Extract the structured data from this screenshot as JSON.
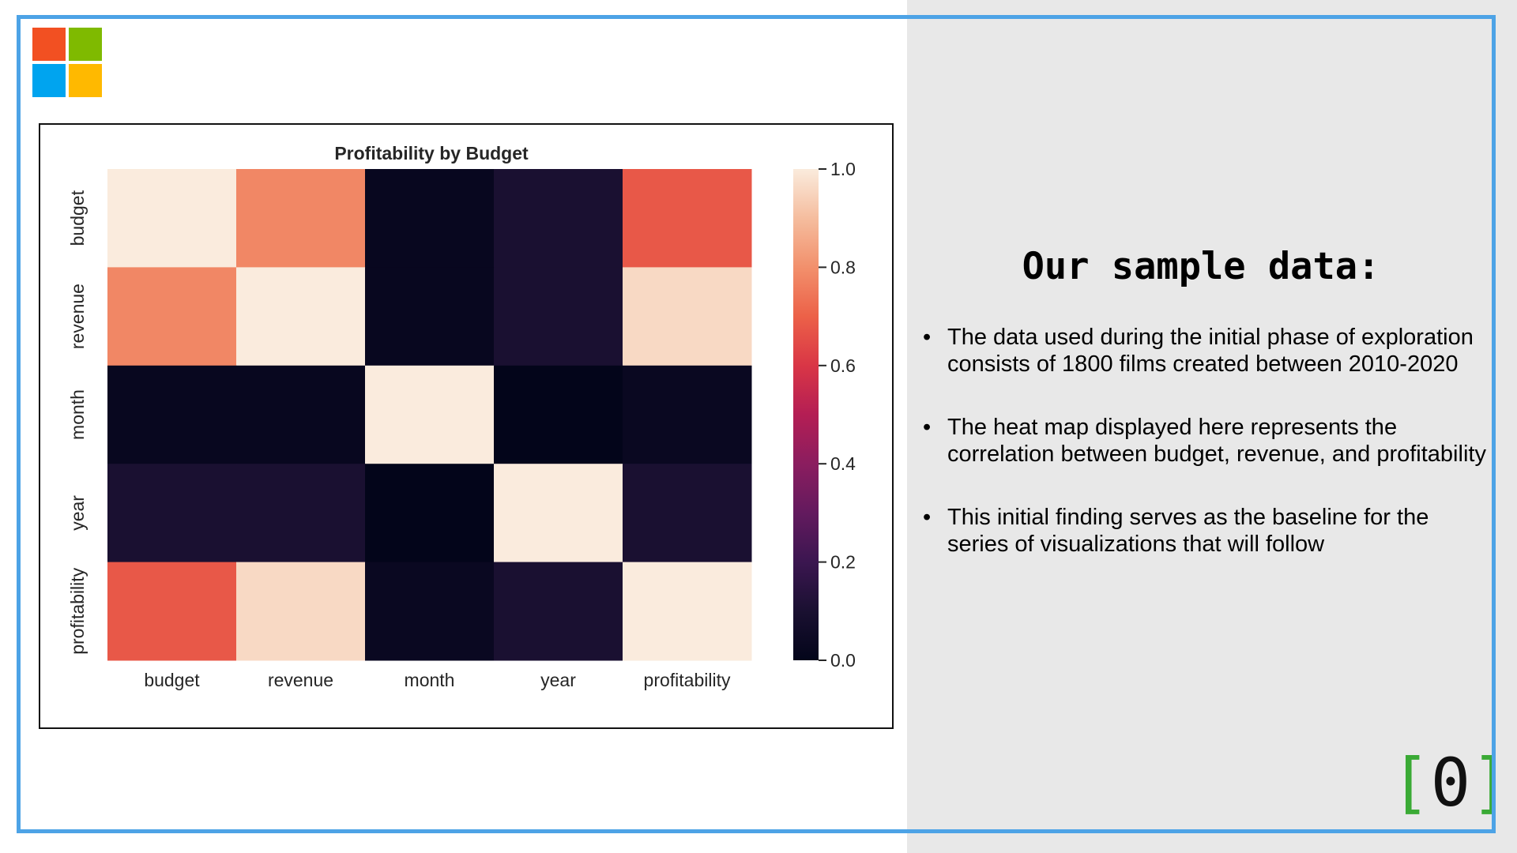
{
  "colors": {
    "frame_border": "#4da3e6",
    "right_panel_bg": "#e8e8e8",
    "logo_red": "#f25022",
    "logo_green": "#7fba00",
    "logo_blue": "#00a4ef",
    "logo_yellow": "#ffb900",
    "bracket_green": "#3aaa35"
  },
  "slide": {
    "heading": "Our sample data:",
    "bullets": [
      "The data used during the initial phase of exploration consists of 1800 films created between 2010-2020",
      "The heat map displayed here represents the correlation between budget, revenue, and profitability",
      "This initial finding serves as the baseline for the series of visualizations that will follow"
    ],
    "bullet_symbol": "•",
    "brand_mark": {
      "open": "[",
      "digit": "0",
      "close": "]"
    }
  },
  "chart_data": {
    "type": "heatmap",
    "title": "Profitability by Budget",
    "x_categories": [
      "budget",
      "revenue",
      "month",
      "year",
      "profitability"
    ],
    "y_categories": [
      "budget",
      "revenue",
      "month",
      "year",
      "profitability"
    ],
    "values": [
      [
        1.0,
        0.78,
        0.02,
        0.1,
        0.68
      ],
      [
        0.78,
        1.0,
        0.02,
        0.1,
        0.96
      ],
      [
        0.02,
        0.02,
        1.0,
        -0.01,
        0.03
      ],
      [
        0.1,
        0.1,
        -0.01,
        1.0,
        0.1
      ],
      [
        0.68,
        0.96,
        0.03,
        0.1,
        1.0
      ]
    ],
    "colorbar": {
      "vmin": 0.0,
      "vmax": 1.0,
      "ticks": [
        "0.0",
        "0.2",
        "0.4",
        "0.6",
        "0.8",
        "1.0"
      ],
      "colormap": "rocket"
    },
    "grid": false
  }
}
